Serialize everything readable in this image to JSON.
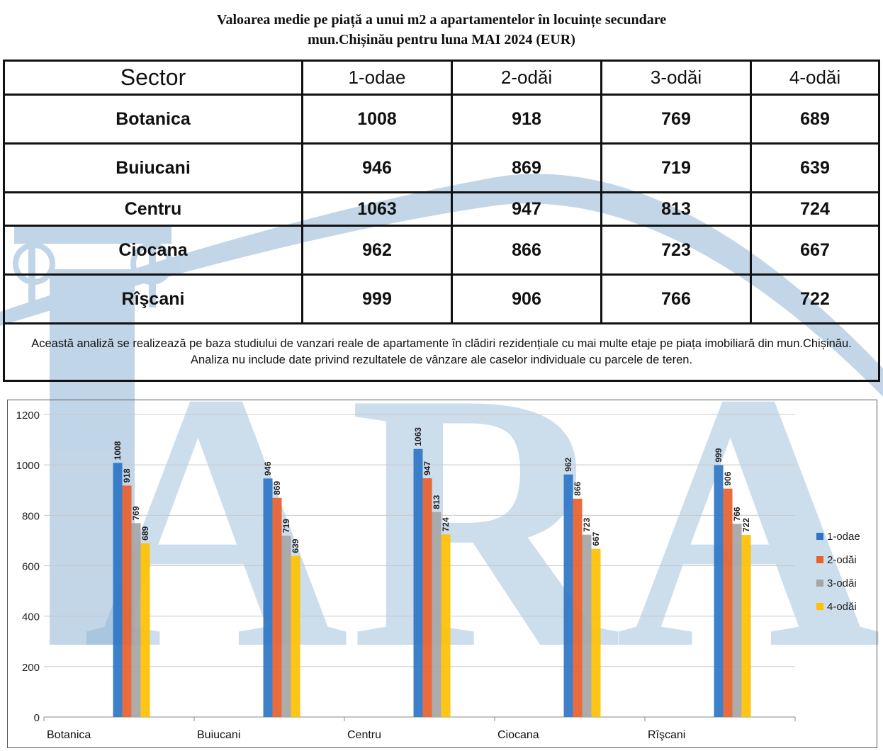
{
  "title": {
    "line1": "Valoarea medie pe piață a unui m2 a apartamentelor în locuințe secundare",
    "line2": "mun.Chișinău pentru luna MAI 2024 (EUR)"
  },
  "table": {
    "headers": [
      "Sector",
      "1-odae",
      "2-odăi",
      "3-odăi",
      "4-odăi"
    ],
    "rows": [
      {
        "sector": "Botanica",
        "values": [
          "1008",
          "918",
          "769",
          "689"
        ]
      },
      {
        "sector": "Buiucani",
        "values": [
          "946",
          "869",
          "719",
          "639"
        ]
      },
      {
        "sector": "Centru",
        "values": [
          "1063",
          "947",
          "813",
          "724"
        ]
      },
      {
        "sector": "Ciocana",
        "values": [
          "962",
          "866",
          "723",
          "667"
        ]
      },
      {
        "sector": "Rîşcani",
        "values": [
          "999",
          "906",
          "766",
          "722"
        ]
      }
    ],
    "note": "Această analiză se realizează pe baza studiului de vanzari reale de apartamente în clădiri rezidențiale cu mai multe etaje pe piața imobiliară      din mun.Chișinău. Analiza nu include date privind rezultatele de vânzare ale caselor individuale cu parcele de teren."
  },
  "watermark": {
    "text": "ARA",
    "color": "#8fb4d6"
  },
  "chart_data": {
    "type": "bar",
    "categories": [
      "Botanica",
      "Buiucani",
      "Centru",
      "Ciocana",
      "Rîşcani"
    ],
    "series": [
      {
        "name": "1-odae",
        "color": "#2e75c6",
        "values": [
          1008,
          946,
          1063,
          962,
          999
        ]
      },
      {
        "name": "2-odăi",
        "color": "#e8602c",
        "values": [
          918,
          869,
          947,
          866,
          906
        ]
      },
      {
        "name": "3-odăi",
        "color": "#a5a5a5",
        "values": [
          769,
          719,
          813,
          723,
          766
        ]
      },
      {
        "name": "4-odăi",
        "color": "#ffc000",
        "values": [
          689,
          639,
          724,
          667,
          722
        ]
      }
    ],
    "yticks": [
      0,
      200,
      400,
      600,
      800,
      1000,
      1200
    ],
    "ylim": [
      0,
      1200
    ],
    "grid": true,
    "legend": "right",
    "data_labels": true
  }
}
